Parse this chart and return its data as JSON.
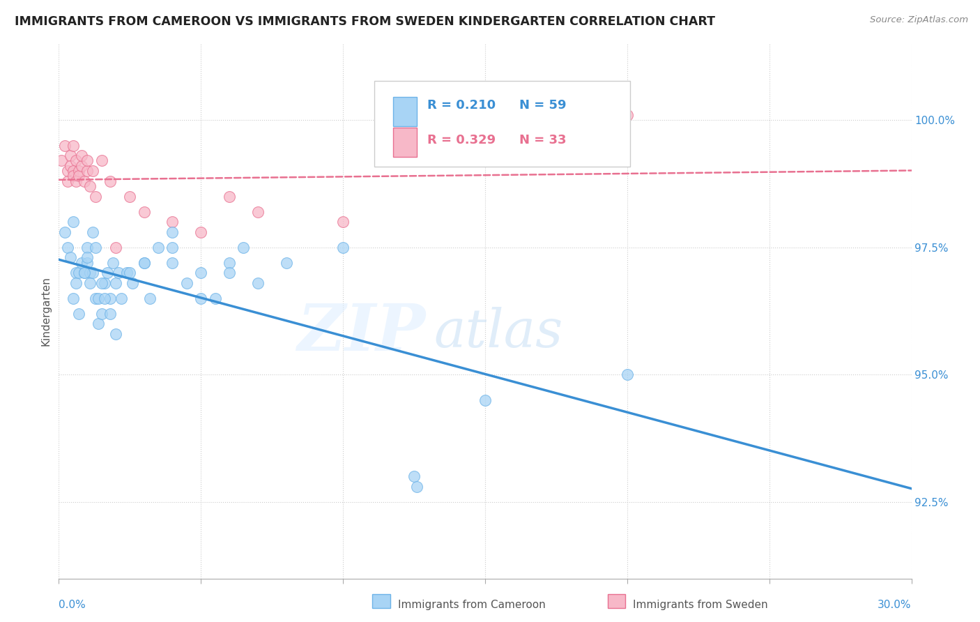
{
  "title": "IMMIGRANTS FROM CAMEROON VS IMMIGRANTS FROM SWEDEN KINDERGARTEN CORRELATION CHART",
  "source_text": "Source: ZipAtlas.com",
  "ylabel_label": "Kindergarten",
  "r_cameroon": 0.21,
  "n_cameroon": 59,
  "r_sweden": 0.329,
  "n_sweden": 33,
  "color_cameroon_fill": "#a8d4f5",
  "color_cameroon_edge": "#6db3e8",
  "color_sweden_fill": "#f7b8c8",
  "color_sweden_edge": "#e87090",
  "trend_color_cameroon": "#3a8fd4",
  "trend_color_sweden": "#e87090",
  "watermark_zip": "ZIP",
  "watermark_atlas": "atlas",
  "xlim": [
    0.0,
    30.0
  ],
  "ylim": [
    91.0,
    101.5
  ],
  "ytick_vals": [
    92.5,
    95.0,
    97.5,
    100.0
  ],
  "xtick_vals": [
    0,
    5,
    10,
    15,
    20,
    25,
    30
  ],
  "cam_x": [
    0.2,
    0.3,
    0.4,
    0.5,
    0.6,
    0.6,
    0.7,
    0.8,
    0.9,
    1.0,
    1.0,
    1.1,
    1.1,
    1.2,
    1.3,
    1.4,
    1.4,
    1.5,
    1.6,
    1.7,
    1.8,
    1.9,
    2.0,
    2.1,
    2.2,
    2.4,
    2.6,
    3.0,
    3.2,
    3.5,
    4.0,
    4.0,
    4.5,
    5.0,
    5.5,
    6.0,
    6.5,
    7.0,
    8.0,
    10.0,
    12.5,
    12.6,
    15.0,
    20.0,
    0.5,
    0.7,
    0.9,
    1.0,
    1.2,
    1.3,
    1.5,
    1.6,
    1.8,
    2.0,
    2.5,
    3.0,
    4.0,
    5.0,
    6.0
  ],
  "cam_y": [
    97.8,
    97.5,
    97.3,
    98.0,
    97.0,
    96.8,
    97.0,
    97.2,
    97.0,
    97.5,
    97.2,
    97.0,
    96.8,
    97.0,
    96.5,
    96.0,
    96.5,
    96.2,
    96.8,
    97.0,
    96.5,
    97.2,
    96.8,
    97.0,
    96.5,
    97.0,
    96.8,
    97.2,
    96.5,
    97.5,
    97.8,
    97.2,
    96.8,
    97.0,
    96.5,
    97.2,
    97.5,
    96.8,
    97.2,
    97.5,
    93.0,
    92.8,
    94.5,
    95.0,
    96.5,
    96.2,
    97.0,
    97.3,
    97.8,
    97.5,
    96.8,
    96.5,
    96.2,
    95.8,
    97.0,
    97.2,
    97.5,
    96.5,
    97.0
  ],
  "swe_x": [
    0.1,
    0.2,
    0.3,
    0.3,
    0.4,
    0.4,
    0.5,
    0.5,
    0.5,
    0.6,
    0.6,
    0.7,
    0.7,
    0.8,
    0.8,
    0.9,
    1.0,
    1.0,
    1.1,
    1.2,
    1.3,
    1.5,
    1.8,
    2.0,
    2.5,
    3.0,
    4.0,
    5.0,
    6.0,
    7.0,
    10.0,
    15.0,
    20.0
  ],
  "swe_y": [
    99.2,
    99.5,
    99.0,
    98.8,
    99.3,
    99.1,
    99.0,
    98.9,
    99.5,
    99.2,
    98.8,
    99.0,
    98.9,
    99.1,
    99.3,
    98.8,
    99.0,
    99.2,
    98.7,
    99.0,
    98.5,
    99.2,
    98.8,
    97.5,
    98.5,
    98.2,
    98.0,
    97.8,
    98.5,
    98.2,
    98.0,
    99.2,
    100.1
  ]
}
